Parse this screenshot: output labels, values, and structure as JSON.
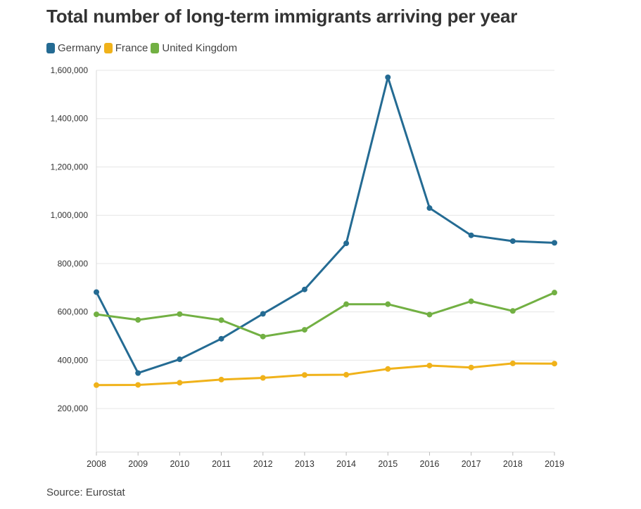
{
  "title": "Total number of long-term immigrants arriving per year",
  "source": "Source: Eurostat",
  "chart_data": {
    "type": "line",
    "title": "Total number of long-term immigrants arriving per year",
    "xlabel": "",
    "ylabel": "",
    "x": [
      "2008",
      "2009",
      "2010",
      "2011",
      "2012",
      "2013",
      "2014",
      "2015",
      "2016",
      "2017",
      "2018",
      "2019"
    ],
    "y_ticks": [
      "200,000",
      "400,000",
      "600,000",
      "800,000",
      "1,000,000",
      "1,200,000",
      "1,400,000",
      "1,600,000"
    ],
    "ylim": [
      20000,
      1600000
    ],
    "grid": true,
    "legend_position": "top-left",
    "series": [
      {
        "name": "Germany",
        "color": "#246b93",
        "values": [
          682000,
          347000,
          404000,
          489000,
          592000,
          693000,
          884000,
          1571000,
          1030000,
          917000,
          893000,
          886000
        ]
      },
      {
        "name": "France",
        "color": "#f0b21a",
        "values": [
          297000,
          298000,
          307000,
          320000,
          327000,
          339000,
          340000,
          364000,
          378000,
          370000,
          387000,
          386000
        ]
      },
      {
        "name": "United Kingdom",
        "color": "#72b043",
        "values": [
          590000,
          567000,
          591000,
          566000,
          498000,
          526000,
          632000,
          632000,
          589000,
          644000,
          604000,
          680000
        ]
      }
    ]
  }
}
